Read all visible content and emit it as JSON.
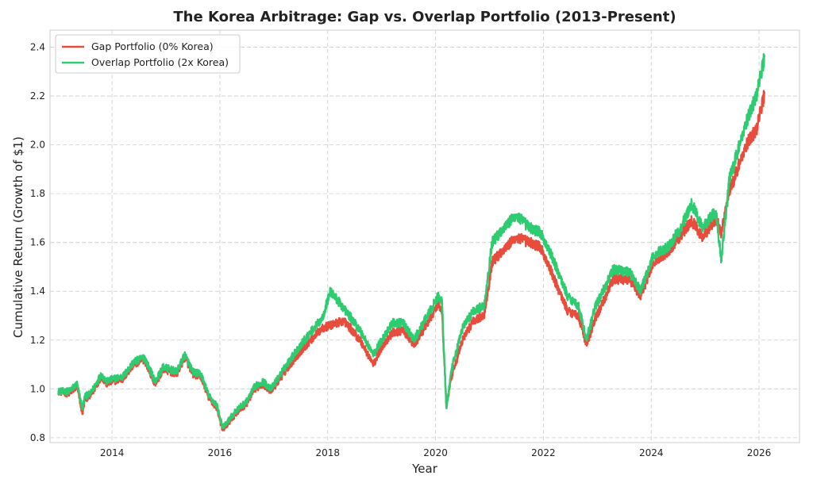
{
  "chart_data": {
    "type": "line",
    "title": "The Korea Arbitrage: Gap vs. Overlap Portfolio (2013-Present)",
    "xlabel": "Year",
    "ylabel": "Cumulative Return (Growth of $1)",
    "xlim": [
      2012.85,
      2026.75
    ],
    "ylim": [
      0.78,
      2.47
    ],
    "xticks": [
      2014,
      2016,
      2018,
      2020,
      2022,
      2024,
      2026
    ],
    "yticks": [
      0.8,
      1.0,
      1.2,
      1.4,
      1.6,
      1.8,
      2.0,
      2.2,
      2.4
    ],
    "grid": true,
    "legend_position": "top-left",
    "series": [
      {
        "name": "Gap Portfolio (0% Korea)",
        "color": "#e74c3c",
        "x": [
          2013.0,
          2013.2,
          2013.35,
          2013.45,
          2013.5,
          2013.6,
          2013.8,
          2013.9,
          2014.0,
          2014.2,
          2014.4,
          2014.6,
          2014.8,
          2014.95,
          2015.2,
          2015.35,
          2015.5,
          2015.65,
          2015.8,
          2015.95,
          2016.05,
          2016.3,
          2016.5,
          2016.65,
          2016.8,
          2016.95,
          2017.3,
          2017.6,
          2017.9,
          2018.05,
          2018.3,
          2018.6,
          2018.85,
          2019.0,
          2019.2,
          2019.4,
          2019.6,
          2019.8,
          2020.05,
          2020.12,
          2020.2,
          2020.3,
          2020.5,
          2020.7,
          2020.9,
          2021.05,
          2021.3,
          2021.5,
          2021.75,
          2021.95,
          2022.2,
          2022.45,
          2022.65,
          2022.8,
          2022.95,
          2023.3,
          2023.6,
          2023.8,
          2024.05,
          2024.3,
          2024.55,
          2024.75,
          2024.95,
          2025.2,
          2025.3,
          2025.45,
          2025.6,
          2025.8,
          2025.95,
          2026.1
        ],
        "y": [
          0.99,
          0.98,
          1.01,
          0.9,
          0.96,
          0.97,
          1.05,
          1.02,
          1.03,
          1.04,
          1.1,
          1.12,
          1.02,
          1.08,
          1.06,
          1.13,
          1.06,
          1.05,
          0.96,
          0.92,
          0.83,
          0.9,
          0.94,
          1.0,
          1.02,
          0.99,
          1.1,
          1.18,
          1.25,
          1.26,
          1.28,
          1.2,
          1.1,
          1.17,
          1.23,
          1.24,
          1.18,
          1.25,
          1.35,
          1.32,
          0.93,
          1.05,
          1.2,
          1.28,
          1.3,
          1.52,
          1.58,
          1.62,
          1.6,
          1.58,
          1.45,
          1.32,
          1.3,
          1.18,
          1.28,
          1.45,
          1.45,
          1.38,
          1.52,
          1.56,
          1.63,
          1.69,
          1.62,
          1.7,
          1.64,
          1.81,
          1.9,
          2.02,
          2.06,
          2.21
        ]
      },
      {
        "name": "Overlap Portfolio (2x Korea)",
        "color": "#2ecc71",
        "x": [
          2013.0,
          2013.2,
          2013.35,
          2013.45,
          2013.5,
          2013.6,
          2013.8,
          2013.9,
          2014.0,
          2014.2,
          2014.4,
          2014.6,
          2014.8,
          2014.95,
          2015.2,
          2015.35,
          2015.5,
          2015.65,
          2015.8,
          2015.95,
          2016.05,
          2016.3,
          2016.5,
          2016.65,
          2016.8,
          2016.95,
          2017.3,
          2017.6,
          2017.9,
          2018.05,
          2018.3,
          2018.6,
          2018.85,
          2019.0,
          2019.2,
          2019.4,
          2019.6,
          2019.8,
          2020.05,
          2020.12,
          2020.2,
          2020.3,
          2020.5,
          2020.7,
          2020.9,
          2021.05,
          2021.3,
          2021.5,
          2021.75,
          2021.95,
          2022.2,
          2022.45,
          2022.65,
          2022.8,
          2022.95,
          2023.3,
          2023.6,
          2023.8,
          2024.05,
          2024.3,
          2024.55,
          2024.75,
          2024.95,
          2025.2,
          2025.3,
          2025.45,
          2025.6,
          2025.8,
          2025.95,
          2026.1
        ],
        "y": [
          0.99,
          0.99,
          1.02,
          0.92,
          0.97,
          0.98,
          1.06,
          1.03,
          1.04,
          1.05,
          1.11,
          1.13,
          1.03,
          1.09,
          1.07,
          1.14,
          1.07,
          1.06,
          0.97,
          0.93,
          0.84,
          0.91,
          0.95,
          1.01,
          1.03,
          1.0,
          1.12,
          1.21,
          1.29,
          1.4,
          1.33,
          1.24,
          1.14,
          1.2,
          1.27,
          1.27,
          1.2,
          1.28,
          1.38,
          1.36,
          0.92,
          1.08,
          1.25,
          1.32,
          1.34,
          1.6,
          1.67,
          1.71,
          1.66,
          1.64,
          1.52,
          1.38,
          1.34,
          1.2,
          1.33,
          1.49,
          1.48,
          1.4,
          1.55,
          1.58,
          1.66,
          1.76,
          1.66,
          1.73,
          1.53,
          1.86,
          1.97,
          2.12,
          2.2,
          2.36
        ]
      }
    ]
  }
}
